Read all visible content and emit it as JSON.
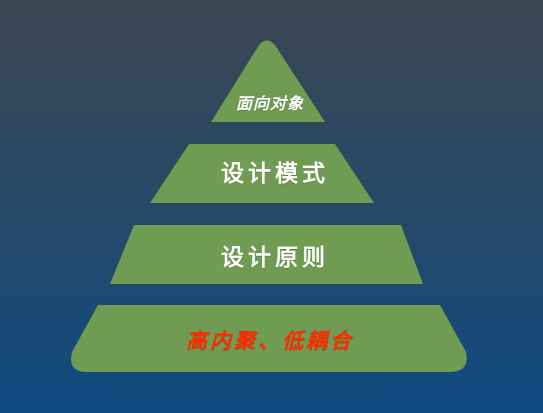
{
  "pyramid": {
    "levels": [
      {
        "label": "面向对象"
      },
      {
        "label": "设计模式"
      },
      {
        "label": "设计原则"
      },
      {
        "label": "高内聚、低耦合"
      }
    ]
  },
  "colors": {
    "tier_fill": "#6f9b52",
    "label_white": "#ffffff",
    "label_red": "#ff2a00",
    "background_top": "#3a4651",
    "background_bottom": "#0f4a80"
  }
}
